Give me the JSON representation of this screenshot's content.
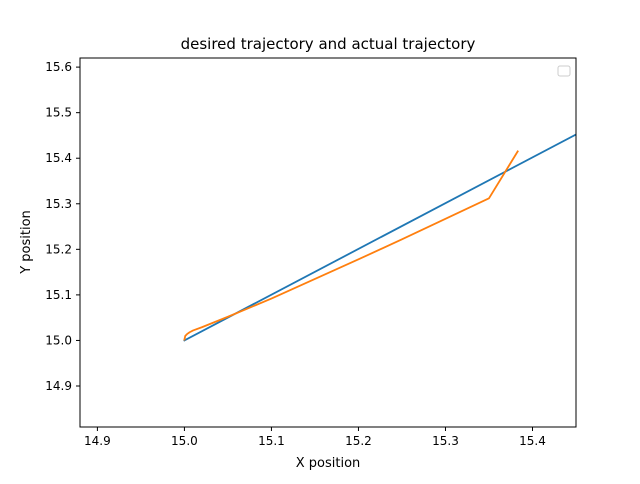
{
  "chart_data": {
    "type": "line",
    "title": "desired trajectory and actual trajectory",
    "xlabel": "X position",
    "ylabel": "Y position",
    "xlim": [
      14.88,
      15.45
    ],
    "ylim": [
      14.81,
      15.62
    ],
    "x_ticks": [
      14.9,
      15.0,
      15.1,
      15.2,
      15.3,
      15.4
    ],
    "x_tick_labels": [
      "14.9",
      "15.0",
      "15.1",
      "15.2",
      "15.3",
      "15.4"
    ],
    "y_ticks": [
      14.9,
      15.0,
      15.1,
      15.2,
      15.3,
      15.4,
      15.5,
      15.6
    ],
    "y_tick_labels": [
      "14.9",
      "15.0",
      "15.1",
      "15.2",
      "15.3",
      "15.4",
      "15.5",
      "15.6"
    ],
    "grid": false,
    "legend": "top-right (empty)",
    "series": [
      {
        "color": "#1f77b4",
        "x": [
          15.0,
          15.45
        ],
        "y": [
          15.0,
          15.452
        ]
      },
      {
        "color": "#ff7f0e",
        "x": [
          15.0,
          15.001,
          15.003,
          15.006,
          15.01,
          15.02,
          15.05,
          15.1,
          15.15,
          15.2,
          15.25,
          15.3,
          15.35,
          15.383
        ],
        "y": [
          15.002,
          15.01,
          15.014,
          15.018,
          15.022,
          15.029,
          15.052,
          15.092,
          15.135,
          15.178,
          15.222,
          15.267,
          15.312,
          15.415
        ]
      }
    ]
  }
}
